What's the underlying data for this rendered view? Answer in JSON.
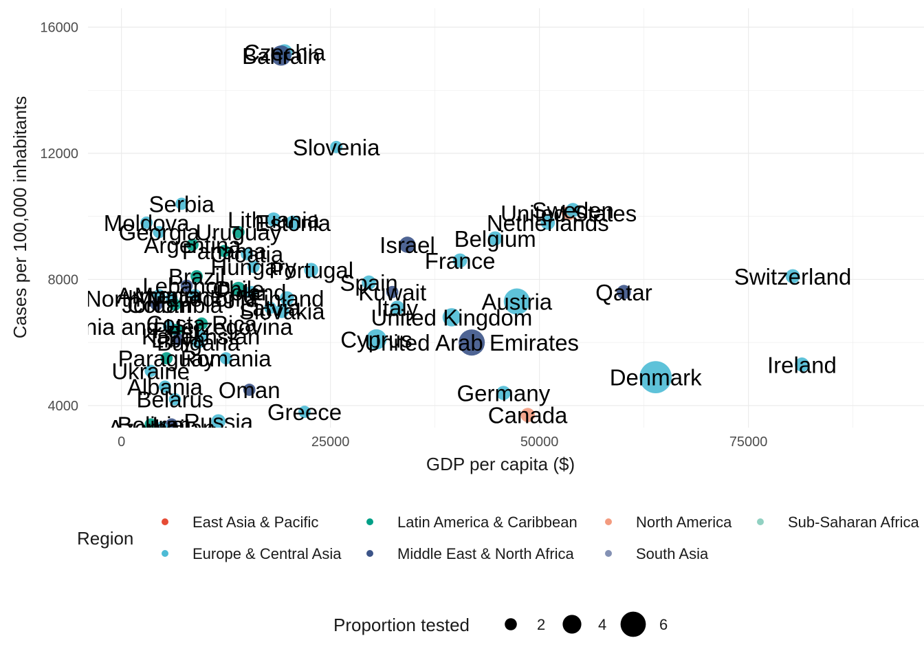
{
  "chart_data": {
    "type": "scatter",
    "xlabel": "GDP per capita ($)",
    "ylabel": "Cases per 100,000 inhabitants",
    "xlim": [
      -4000,
      96000
    ],
    "ylim": [
      3300,
      16600
    ],
    "x_ticks": [
      0,
      25000,
      50000,
      75000
    ],
    "x_tick_labels": [
      "0",
      "25000",
      "50000",
      "75000"
    ],
    "y_ticks": [
      4000,
      8000,
      12000,
      16000
    ],
    "y_tick_labels": [
      "4000",
      "8000",
      "12000",
      "16000"
    ],
    "grid": true,
    "legend_position": "bottom",
    "size_legend": {
      "title": "Proportion tested",
      "items": [
        {
          "label": "2",
          "value": 2
        },
        {
          "label": "4",
          "value": 4
        },
        {
          "label": "6",
          "value": 6
        }
      ]
    },
    "color_legend": {
      "title": "Region",
      "items": [
        {
          "label": "East Asia & Pacific",
          "color": "#E64B35"
        },
        {
          "label": "Europe & Central Asia",
          "color": "#4DBBD5"
        },
        {
          "label": "Latin America & Caribbean",
          "color": "#00A087"
        },
        {
          "label": "Middle East & North Africa",
          "color": "#3C5488"
        },
        {
          "label": "North America",
          "color": "#F39B7F"
        },
        {
          "label": "South Asia",
          "color": "#8491B4"
        },
        {
          "label": "Sub-Saharan Africa",
          "color": "#91D1C2"
        }
      ]
    },
    "points": [
      {
        "label": "Czechia",
        "x": 19500,
        "y": 15200,
        "size": 2,
        "region": "Europe & Central Asia"
      },
      {
        "label": "Bahrain",
        "x": 19100,
        "y": 15100,
        "size": 3,
        "region": "Middle East & North Africa"
      },
      {
        "label": "Slovenia",
        "x": 25700,
        "y": 12200,
        "size": 1,
        "region": "Europe & Central Asia"
      },
      {
        "label": "Serbia",
        "x": 7200,
        "y": 10400,
        "size": 1,
        "region": "Europe & Central Asia"
      },
      {
        "label": "Lithuania",
        "x": 18200,
        "y": 9900,
        "size": 1.5,
        "region": "Europe & Central Asia"
      },
      {
        "label": "Estonia",
        "x": 20500,
        "y": 9800,
        "size": 1.5,
        "region": "Europe & Central Asia"
      },
      {
        "label": "Moldova",
        "x": 3000,
        "y": 9800,
        "size": 1,
        "region": "Europe & Central Asia"
      },
      {
        "label": "Georgia",
        "x": 4500,
        "y": 9500,
        "size": 1,
        "region": "Europe & Central Asia"
      },
      {
        "label": "Uruguay",
        "x": 14000,
        "y": 9500,
        "size": 1,
        "region": "Latin America & Caribbean"
      },
      {
        "label": "Argentina",
        "x": 8500,
        "y": 9100,
        "size": 1,
        "region": "Latin America & Caribbean"
      },
      {
        "label": "Panama",
        "x": 12300,
        "y": 8900,
        "size": 1,
        "region": "Latin America & Caribbean"
      },
      {
        "label": "Croatia",
        "x": 15000,
        "y": 8800,
        "size": 1,
        "region": "Europe & Central Asia"
      },
      {
        "label": "Hungary",
        "x": 15800,
        "y": 8400,
        "size": 1,
        "region": "Europe & Central Asia"
      },
      {
        "label": "Portugal",
        "x": 22700,
        "y": 8300,
        "size": 1.5,
        "region": "Europe & Central Asia"
      },
      {
        "label": "Brazil",
        "x": 9000,
        "y": 8100,
        "size": 1,
        "region": "Latin America & Caribbean"
      },
      {
        "label": "Lebanon",
        "x": 7800,
        "y": 7800,
        "size": 1,
        "region": "Middle East & North Africa"
      },
      {
        "label": "Chile",
        "x": 14000,
        "y": 7700,
        "size": 1.5,
        "region": "Latin America & Caribbean"
      },
      {
        "label": "Poland",
        "x": 15500,
        "y": 7600,
        "size": 1,
        "region": "Europe & Central Asia"
      },
      {
        "label": "Armenia",
        "x": 4500,
        "y": 7500,
        "size": 1,
        "region": "Europe & Central Asia"
      },
      {
        "label": "Montenegro",
        "x": 8800,
        "y": 7500,
        "size": 1,
        "region": "Europe & Central Asia"
      },
      {
        "label": "Finland",
        "x": 19800,
        "y": 7400,
        "size": 1.5,
        "region": "Europe & Central Asia"
      },
      {
        "label": "North Macedonia",
        "x": 6000,
        "y": 7400,
        "size": 1,
        "region": "Europe & Central Asia"
      },
      {
        "label": "Jordan",
        "x": 4200,
        "y": 7200,
        "size": 1,
        "region": "Middle East & North Africa"
      },
      {
        "label": "Colombia",
        "x": 6400,
        "y": 7200,
        "size": 1,
        "region": "Latin America & Caribbean"
      },
      {
        "label": "Latvia",
        "x": 17800,
        "y": 7100,
        "size": 1,
        "region": "Europe & Central Asia"
      },
      {
        "label": "Slovakia",
        "x": 19200,
        "y": 7000,
        "size": 1.5,
        "region": "Europe & Central Asia"
      },
      {
        "label": "Spain",
        "x": 29600,
        "y": 7900,
        "size": 1.5,
        "region": "Europe & Central Asia"
      },
      {
        "label": "Kuwait",
        "x": 32400,
        "y": 7600,
        "size": 1,
        "region": "Middle East & North Africa"
      },
      {
        "label": "Italy",
        "x": 33000,
        "y": 7100,
        "size": 1.5,
        "region": "Europe & Central Asia"
      },
      {
        "label": "Bosnia and Herzegovina",
        "x": 5700,
        "y": 6500,
        "size": 1,
        "region": "Europe & Central Asia"
      },
      {
        "label": "Costa Rica",
        "x": 9600,
        "y": 6600,
        "size": 1,
        "region": "Latin America & Caribbean"
      },
      {
        "label": "Peru",
        "x": 6600,
        "y": 6400,
        "size": 1,
        "region": "Latin America & Caribbean"
      },
      {
        "label": "Kazakhstan",
        "x": 9500,
        "y": 6200,
        "size": 1,
        "region": "Europe & Central Asia"
      },
      {
        "label": "Libya",
        "x": 6800,
        "y": 6100,
        "size": 1,
        "region": "Middle East & North Africa"
      },
      {
        "label": "Bulgaria",
        "x": 9200,
        "y": 6000,
        "size": 1,
        "region": "Europe & Central Asia"
      },
      {
        "label": "Romania",
        "x": 12500,
        "y": 5500,
        "size": 1,
        "region": "Europe & Central Asia"
      },
      {
        "label": "Paraguay",
        "x": 5400,
        "y": 5500,
        "size": 1,
        "region": "Latin America & Caribbean"
      },
      {
        "label": "Ukraine",
        "x": 3500,
        "y": 5100,
        "size": 1,
        "region": "Europe & Central Asia"
      },
      {
        "label": "Albania",
        "x": 5200,
        "y": 4600,
        "size": 1,
        "region": "Europe & Central Asia"
      },
      {
        "label": "Belarus",
        "x": 6400,
        "y": 4200,
        "size": 1,
        "region": "Europe & Central Asia"
      },
      {
        "label": "Oman",
        "x": 15300,
        "y": 4500,
        "size": 1,
        "region": "Middle East & North Africa"
      },
      {
        "label": "Greece",
        "x": 21900,
        "y": 3800,
        "size": 1,
        "region": "Europe & Central Asia"
      },
      {
        "label": "Russia",
        "x": 11600,
        "y": 3500,
        "size": 1.5,
        "region": "Europe & Central Asia"
      },
      {
        "label": "Iran",
        "x": 6000,
        "y": 3400,
        "size": 1,
        "region": "Middle East & North Africa"
      },
      {
        "label": "Bolivia",
        "x": 3500,
        "y": 3400,
        "size": 1,
        "region": "Latin America & Caribbean"
      },
      {
        "label": "Azerbaijan",
        "x": 4800,
        "y": 3300,
        "size": 1,
        "region": "Europe & Central Asia"
      },
      {
        "label": "Cyprus",
        "x": 30500,
        "y": 6100,
        "size": 3,
        "region": "Europe & Central Asia"
      },
      {
        "label": "United Kingdom",
        "x": 39500,
        "y": 6800,
        "size": 2.5,
        "region": "Europe & Central Asia"
      },
      {
        "label": "United Arab Emirates",
        "x": 41900,
        "y": 6000,
        "size": 4.5,
        "region": "Middle East & North Africa"
      },
      {
        "label": "Austria",
        "x": 47300,
        "y": 7300,
        "size": 4.5,
        "region": "Europe & Central Asia"
      },
      {
        "label": "Israel",
        "x": 34200,
        "y": 9100,
        "size": 2,
        "region": "Middle East & North Africa"
      },
      {
        "label": "Belgium",
        "x": 44700,
        "y": 9300,
        "size": 1.5,
        "region": "Europe & Central Asia"
      },
      {
        "label": "France",
        "x": 40500,
        "y": 8600,
        "size": 1.5,
        "region": "Europe & Central Asia"
      },
      {
        "label": "Netherlands",
        "x": 51000,
        "y": 9800,
        "size": 1.5,
        "region": "Europe & Central Asia"
      },
      {
        "label": "United States",
        "x": 53500,
        "y": 10100,
        "size": 1.5,
        "region": "North America"
      },
      {
        "label": "Sweden",
        "x": 54000,
        "y": 10200,
        "size": 1.5,
        "region": "Europe & Central Asia"
      },
      {
        "label": "Germany",
        "x": 45700,
        "y": 4400,
        "size": 1.5,
        "region": "Europe & Central Asia"
      },
      {
        "label": "Canada",
        "x": 48600,
        "y": 3700,
        "size": 1.5,
        "region": "North America"
      },
      {
        "label": "Qatar",
        "x": 60100,
        "y": 7600,
        "size": 1.5,
        "region": "Middle East & North Africa"
      },
      {
        "label": "Switzerland",
        "x": 80300,
        "y": 8100,
        "size": 1.5,
        "region": "Europe & Central Asia"
      },
      {
        "label": "Denmark",
        "x": 63900,
        "y": 4900,
        "size": 6,
        "region": "Europe & Central Asia"
      },
      {
        "label": "Ireland",
        "x": 81400,
        "y": 5300,
        "size": 1.5,
        "region": "Europe & Central Asia"
      }
    ]
  }
}
